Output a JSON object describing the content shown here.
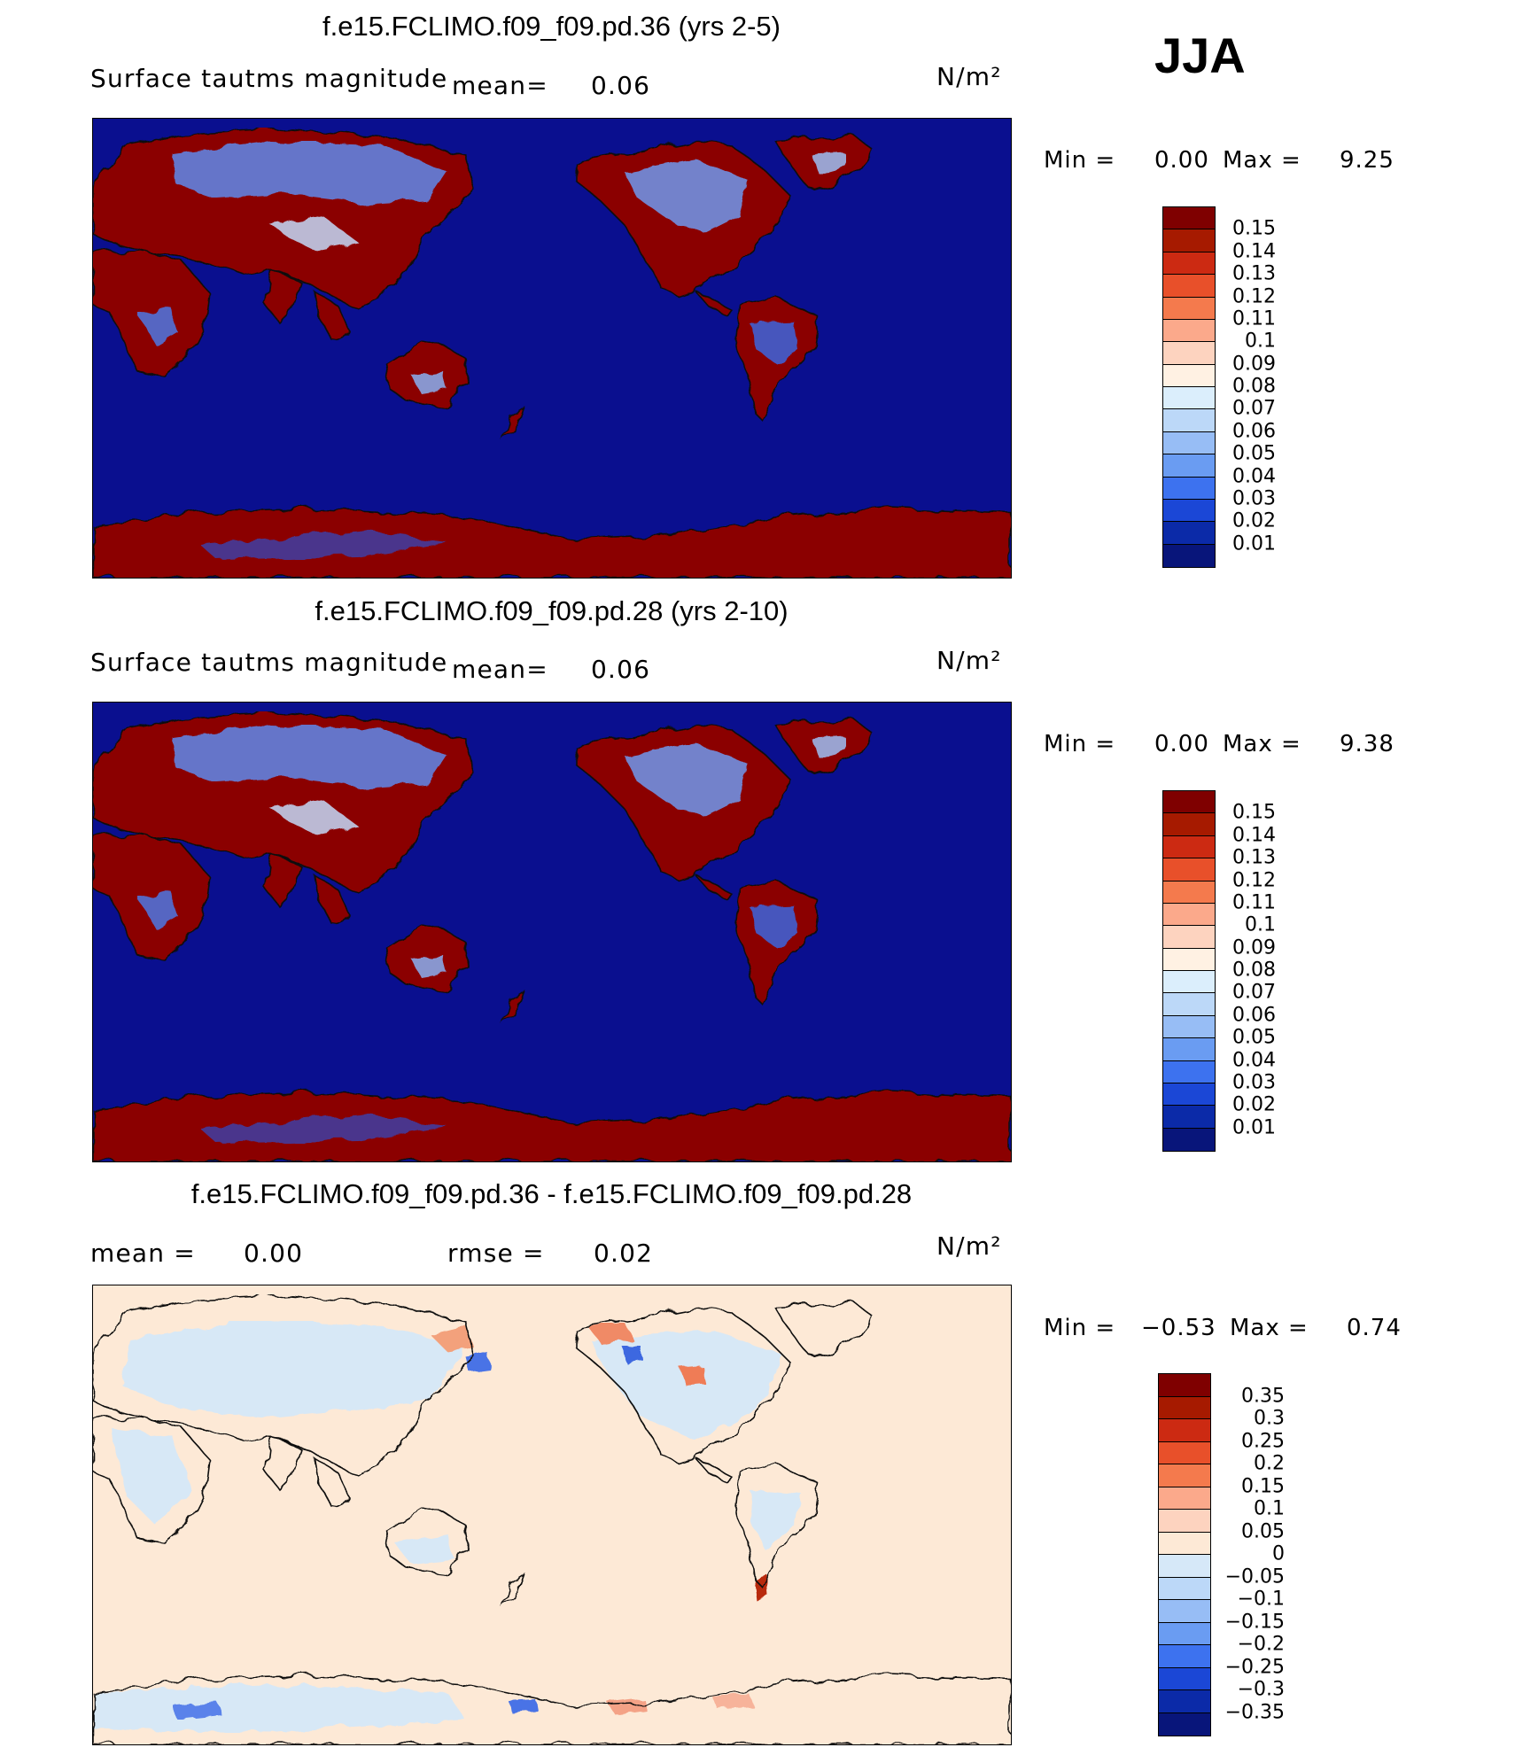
{
  "season": "JJA",
  "colors": {
    "ocean_deep_blue": "#0a0f8f",
    "land_red": "#8b0000",
    "diff_background": "#fde9d6",
    "diff_light_blue": "#d6e8f8",
    "coast": "#111111"
  },
  "panels": [
    {
      "title": "f.e15.FCLIMO.f09_f09.pd.36 (yrs 2-5)",
      "variable": "Surface tautms magnitude",
      "mean_label": "mean=",
      "mean_value": "0.06",
      "units": "N/m²",
      "min_label": "Min =",
      "min_value": "0.00",
      "max_label": "Max =",
      "max_value": "9.25",
      "colorbar": {
        "labels": [
          "0.15",
          "0.14",
          "0.13",
          "0.12",
          "0.11",
          "0.1",
          "0.09",
          "0.08",
          "0.07",
          "0.06",
          "0.05",
          "0.04",
          "0.03",
          "0.02",
          "0.01"
        ],
        "colors": [
          "#7f0000",
          "#a61a00",
          "#cc2a12",
          "#e8502a",
          "#f47a4d",
          "#fba98b",
          "#fdd3bf",
          "#fff1e3",
          "#dbeefc",
          "#bcd8f8",
          "#97bdf5",
          "#6a9cf2",
          "#3d72ef",
          "#1b47d6",
          "#0b2aa8",
          "#08157a"
        ]
      }
    },
    {
      "title": "f.e15.FCLIMO.f09_f09.pd.28 (yrs 2-10)",
      "variable": "Surface tautms magnitude",
      "mean_label": "mean=",
      "mean_value": "0.06",
      "units": "N/m²",
      "min_label": "Min =",
      "min_value": "0.00",
      "max_label": "Max =",
      "max_value": "9.38",
      "colorbar": {
        "labels": [
          "0.15",
          "0.14",
          "0.13",
          "0.12",
          "0.11",
          "0.1",
          "0.09",
          "0.08",
          "0.07",
          "0.06",
          "0.05",
          "0.04",
          "0.03",
          "0.02",
          "0.01"
        ],
        "colors": [
          "#7f0000",
          "#a61a00",
          "#cc2a12",
          "#e8502a",
          "#f47a4d",
          "#fba98b",
          "#fdd3bf",
          "#fff1e3",
          "#dbeefc",
          "#bcd8f8",
          "#97bdf5",
          "#6a9cf2",
          "#3d72ef",
          "#1b47d6",
          "#0b2aa8",
          "#08157a"
        ]
      }
    },
    {
      "title": "f.e15.FCLIMO.f09_f09.pd.36 - f.e15.FCLIMO.f09_f09.pd.28",
      "mean_label": "mean =",
      "mean_value": "0.00",
      "rmse_label": "rmse =",
      "rmse_value": "0.02",
      "units": "N/m²",
      "min_label": "Min =",
      "min_value": "−0.53",
      "max_label": "Max =",
      "max_value": "0.74",
      "colorbar": {
        "labels": [
          "0.35",
          "0.3",
          "0.25",
          "0.2",
          "0.15",
          "0.1",
          "0.05",
          "0",
          "−0.05",
          "−0.1",
          "−0.15",
          "−0.2",
          "−0.25",
          "−0.3",
          "−0.35"
        ],
        "colors": [
          "#7f0000",
          "#a61a00",
          "#cc2a12",
          "#e8502a",
          "#f47a4d",
          "#fba98b",
          "#fdd3bf",
          "#fde9d6",
          "#d6e8f8",
          "#bcd8f8",
          "#97bdf5",
          "#6a9cf2",
          "#3d72ef",
          "#1b47d6",
          "#0b2aa8",
          "#08157a"
        ]
      }
    }
  ]
}
